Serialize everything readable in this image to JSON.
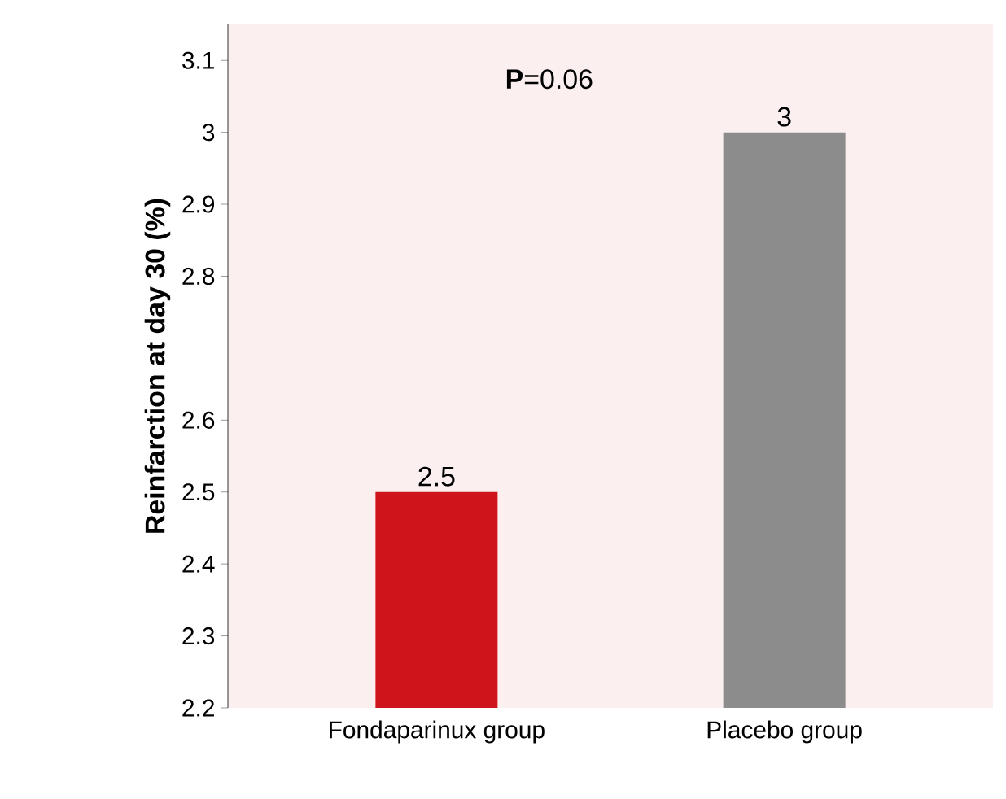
{
  "chart_data": {
    "type": "bar",
    "ylabel": "Reinfarction at day 30 (%)",
    "categories": [
      "Fondaparinux group",
      "Placebo group"
    ],
    "values": [
      2.5,
      3
    ],
    "colors": [
      "#d0141c",
      "#8c8c8c"
    ],
    "ylim": [
      2.2,
      3.15
    ],
    "yticks": [
      2.2,
      2.3,
      2.4,
      2.5,
      2.6,
      2.8,
      2.9,
      3,
      3.1
    ],
    "data_labels": true,
    "annotations": [
      "**P**=0.06"
    ]
  }
}
